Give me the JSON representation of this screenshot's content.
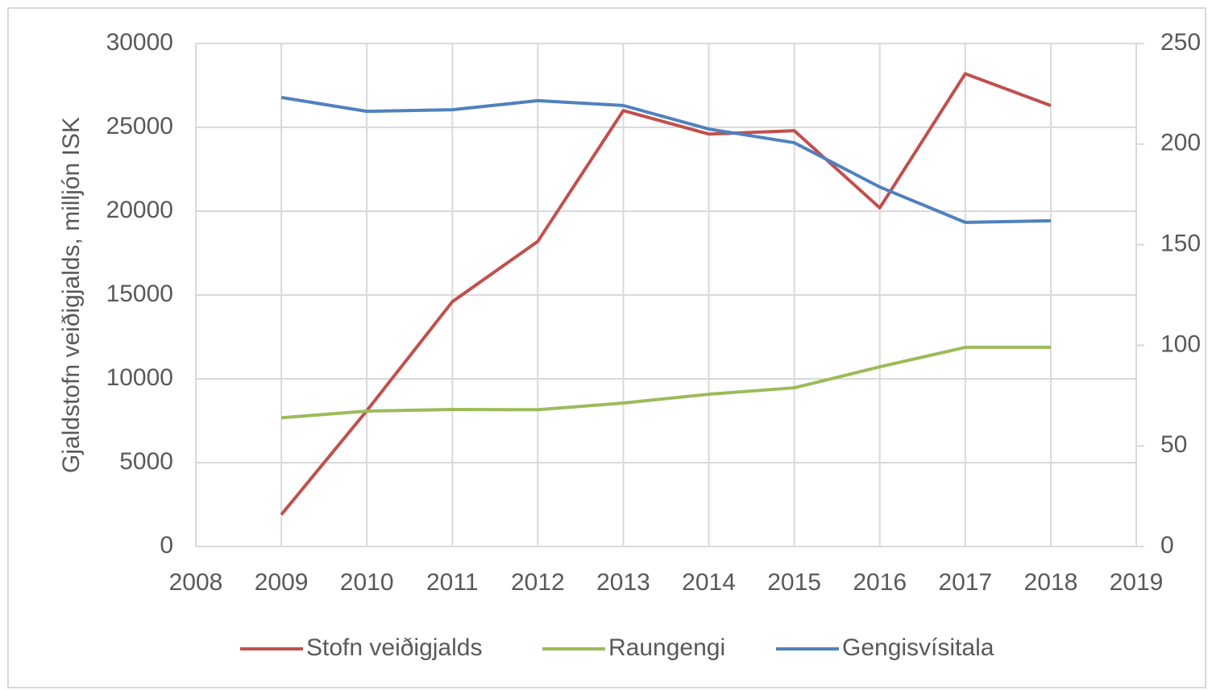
{
  "chart_data": {
    "type": "line",
    "y_label": "Gjaldstofn veiðigjalds, milljón ISK",
    "x": [
      2009,
      2010,
      2011,
      2012,
      2013,
      2014,
      2015,
      2016,
      2017,
      2018
    ],
    "series": [
      {
        "name": "Stofn veiðigjalds",
        "color": "#c0504d",
        "values": [
          1900,
          8100,
          14600,
          18200,
          26000,
          24600,
          24800,
          20200,
          28200,
          26300
        ]
      },
      {
        "name": "Raungengi",
        "color": "#9bbb59",
        "axis": "y2",
        "values": [
          64,
          67.3,
          68.1,
          68,
          71.3,
          75.7,
          78.9,
          89.3,
          99,
          99
        ]
      },
      {
        "name": "Gengisvísitala",
        "color": "#4f81bd",
        "axis": "y2",
        "values": [
          223.2,
          216.3,
          217.1,
          221.6,
          219.2,
          207.5,
          200.7,
          178.7,
          161.1,
          161.9
        ]
      }
    ],
    "xlim": [
      2008,
      2019
    ],
    "xticks": [
      2008,
      2009,
      2010,
      2011,
      2012,
      2013,
      2014,
      2015,
      2016,
      2017,
      2018,
      2019
    ],
    "ylim": [
      0,
      30000
    ],
    "yticks": [
      0,
      5000,
      10000,
      15000,
      20000,
      25000,
      30000
    ],
    "y2lim": [
      0,
      250
    ],
    "y2ticks": [
      0,
      50,
      100,
      150,
      200,
      250
    ],
    "grid": true,
    "legend": "bottom"
  }
}
